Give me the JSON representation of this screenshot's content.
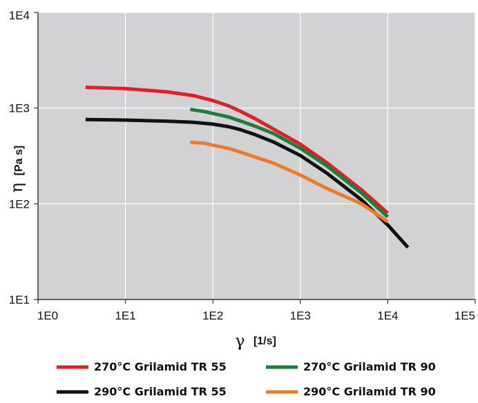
{
  "chart_data": {
    "type": "line",
    "title": "",
    "xlabel": {
      "symbol": "γ",
      "unit": "[1/s]"
    },
    "ylabel": {
      "symbol": "η",
      "unit": "[Pa s]"
    },
    "xscale": "log",
    "yscale": "log",
    "xlim": [
      1,
      100000
    ],
    "ylim": [
      10,
      10000
    ],
    "x_ticks": [
      {
        "value": 1,
        "label": "1E0"
      },
      {
        "value": 10,
        "label": "1E1"
      },
      {
        "value": 100,
        "label": "1E2"
      },
      {
        "value": 1000,
        "label": "1E3"
      },
      {
        "value": 10000,
        "label": "1E4"
      },
      {
        "value": 100000,
        "label": "1E5"
      }
    ],
    "y_ticks": [
      {
        "value": 10,
        "label": "1E1"
      },
      {
        "value": 100,
        "label": "1E2"
      },
      {
        "value": 1000,
        "label": "1E3"
      },
      {
        "value": 10000,
        "label": "1E4"
      }
    ],
    "grid": true,
    "background": "#d1d2d4",
    "legend_position": "bottom",
    "series": [
      {
        "name": "270°C Grilamid TR 55",
        "color": "#e31e24",
        "points": [
          [
            3.5,
            1650
          ],
          [
            10,
            1600
          ],
          [
            30,
            1480
          ],
          [
            60,
            1350
          ],
          [
            100,
            1200
          ],
          [
            150,
            1060
          ],
          [
            200,
            940
          ],
          [
            300,
            780
          ],
          [
            500,
            600
          ],
          [
            1000,
            420
          ],
          [
            2000,
            270
          ],
          [
            5000,
            140
          ],
          [
            10000,
            80
          ]
        ]
      },
      {
        "name": "270°C Grilamid TR 90",
        "color": "#1b7f3b",
        "points": [
          [
            55,
            970
          ],
          [
            80,
            920
          ],
          [
            100,
            880
          ],
          [
            150,
            810
          ],
          [
            200,
            740
          ],
          [
            300,
            650
          ],
          [
            500,
            540
          ],
          [
            1000,
            380
          ],
          [
            2000,
            250
          ],
          [
            5000,
            130
          ],
          [
            10000,
            73
          ]
        ]
      },
      {
        "name": "290°C Grilamid TR 55",
        "color": "#111111",
        "points": [
          [
            3.5,
            760
          ],
          [
            10,
            750
          ],
          [
            30,
            730
          ],
          [
            60,
            710
          ],
          [
            100,
            680
          ],
          [
            150,
            640
          ],
          [
            200,
            600
          ],
          [
            300,
            530
          ],
          [
            500,
            440
          ],
          [
            1000,
            320
          ],
          [
            2000,
            210
          ],
          [
            5000,
            110
          ],
          [
            10000,
            60
          ],
          [
            17000,
            35
          ]
        ]
      },
      {
        "name": "290°C Grilamid TR 90",
        "color": "#f07b27",
        "points": [
          [
            55,
            440
          ],
          [
            80,
            430
          ],
          [
            100,
            410
          ],
          [
            150,
            380
          ],
          [
            200,
            350
          ],
          [
            300,
            310
          ],
          [
            500,
            265
          ],
          [
            1000,
            200
          ],
          [
            2000,
            145
          ],
          [
            5000,
            100
          ],
          [
            10000,
            65
          ]
        ]
      }
    ]
  }
}
